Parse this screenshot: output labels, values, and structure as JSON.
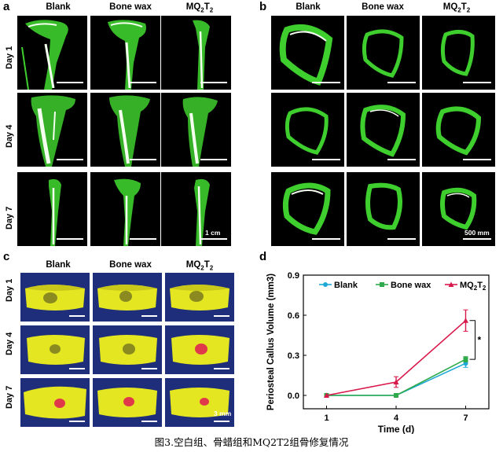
{
  "panels": {
    "a": {
      "letter": "a",
      "columns": [
        "Blank",
        "Bone wax",
        "MQ2T2"
      ],
      "rows": [
        "Day 1",
        "Day 4",
        "Day 7"
      ],
      "scale_label": "1 cm"
    },
    "b": {
      "letter": "b",
      "columns": [
        "Blank",
        "Bone wax",
        "MQ2T2"
      ],
      "scale_label": "500 mm"
    },
    "c": {
      "letter": "c",
      "columns": [
        "Blank",
        "Bone wax",
        "MQ2T2"
      ],
      "rows": [
        "Day 1",
        "Day 4",
        "Day 7"
      ],
      "scale_label": "3 mm"
    },
    "d": {
      "letter": "d",
      "significance": "*"
    }
  },
  "chart_data": {
    "type": "line",
    "title": "",
    "xlabel": "Time (d)",
    "ylabel": "Periosteal Callus Volume (mm3)",
    "x": [
      1,
      4,
      7
    ],
    "ylim": [
      -0.1,
      0.9
    ],
    "yticks": [
      0.0,
      0.3,
      0.6,
      0.9
    ],
    "ytick_labels": [
      "0.0",
      "0.3",
      "0.6",
      "0.9"
    ],
    "xtick_labels": [
      "1",
      "4",
      "7"
    ],
    "legend_position": "top",
    "series": [
      {
        "name": "Blank",
        "color": "#1ea8d8",
        "marker": "circle",
        "values": [
          0.0,
          0.0,
          0.24
        ],
        "errors": [
          0.0,
          0.0,
          0.03
        ]
      },
      {
        "name": "Bone wax",
        "color": "#2eaa4a",
        "marker": "square",
        "values": [
          0.0,
          0.0,
          0.27
        ],
        "errors": [
          0.0,
          0.0,
          0.02
        ]
      },
      {
        "name": "MQ2T2",
        "color": "#d8184a",
        "marker": "triangle",
        "values": [
          0.0,
          0.1,
          0.56
        ],
        "errors": [
          0.0,
          0.04,
          0.08
        ]
      }
    ]
  },
  "caption": "图3.空白组、骨蜡组和MQ2T2组骨修复情况",
  "colors": {
    "bone_green": "#3ecf2e",
    "bone_white": "#f4fff0",
    "ct_bg": "#1f2e7a",
    "callus_yellow": "#e3e620",
    "defect_red": "#e03a4a"
  }
}
